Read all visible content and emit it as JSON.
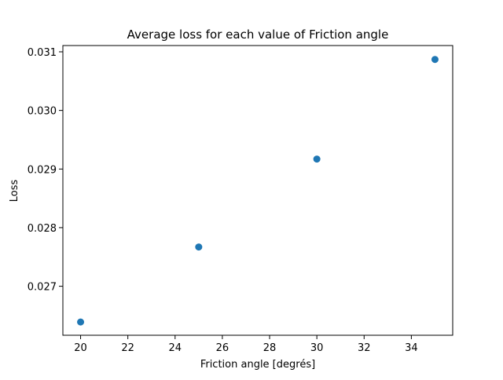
{
  "chart_data": {
    "type": "scatter",
    "title": "Average loss for each value of Friction angle",
    "xlabel": "Friction angle [degrés]",
    "ylabel": "Loss",
    "xlim": [
      19.25,
      35.75
    ],
    "ylim": [
      0.026164,
      0.031107
    ],
    "xticks": [
      20,
      22,
      24,
      26,
      28,
      30,
      32,
      34
    ],
    "xtick_labels": [
      "20",
      "22",
      "24",
      "26",
      "28",
      "30",
      "32",
      "34"
    ],
    "yticks": [
      0.027,
      0.028,
      0.029,
      0.03,
      0.031
    ],
    "ytick_labels": [
      "0.027",
      "0.028",
      "0.029",
      "0.030",
      "0.031"
    ],
    "grid": false,
    "series": [
      {
        "color": "#1f77b4",
        "x": [
          20,
          25,
          30,
          35
        ],
        "y": [
          0.02639,
          0.02767,
          0.02917,
          0.03087
        ]
      }
    ]
  }
}
